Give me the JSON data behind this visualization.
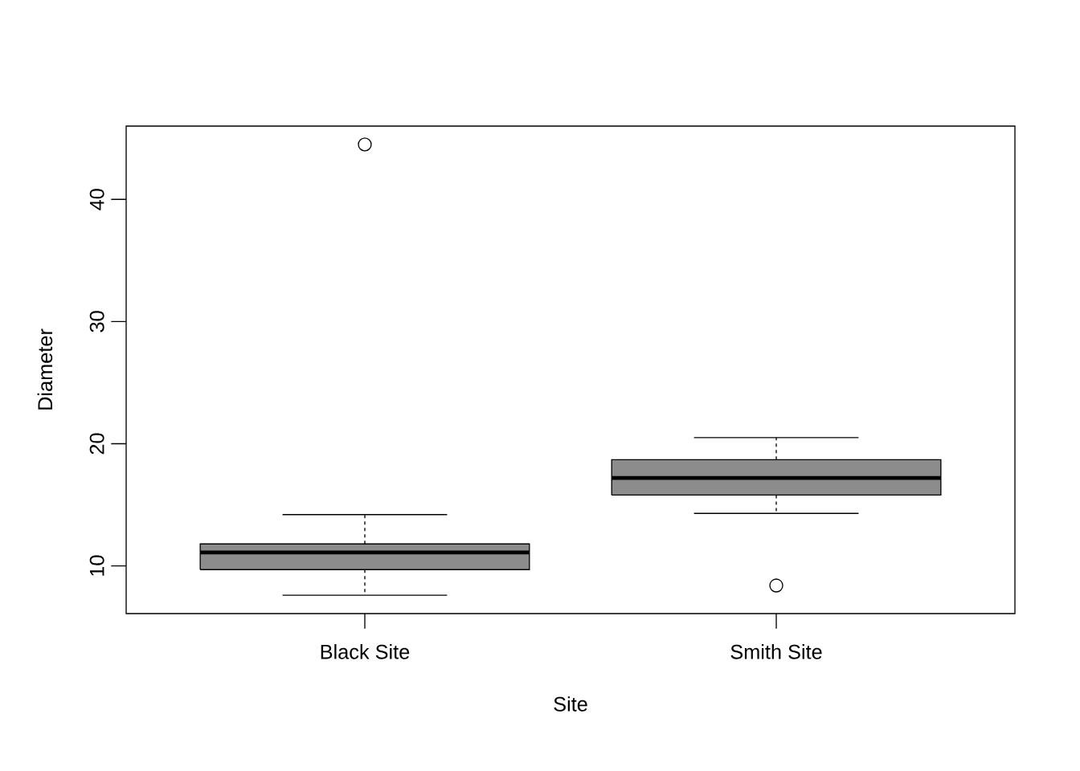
{
  "chart_data": {
    "type": "box",
    "xlabel": "Site",
    "ylabel": "Diameter",
    "categories": [
      "Black Site",
      "Smith Site"
    ],
    "boxes": [
      {
        "low": 7.6,
        "q1": 9.7,
        "median": 11.1,
        "q3": 11.8,
        "high": 14.2,
        "outliers": [
          44.5
        ]
      },
      {
        "low": 14.3,
        "q1": 15.8,
        "median": 17.2,
        "q3": 18.7,
        "high": 20.5,
        "outliers": [
          8.4
        ]
      }
    ],
    "color": "#8c8c8c",
    "ylim": [
      6.1,
      46.0
    ],
    "yticks": [
      10,
      20,
      30,
      40
    ]
  }
}
